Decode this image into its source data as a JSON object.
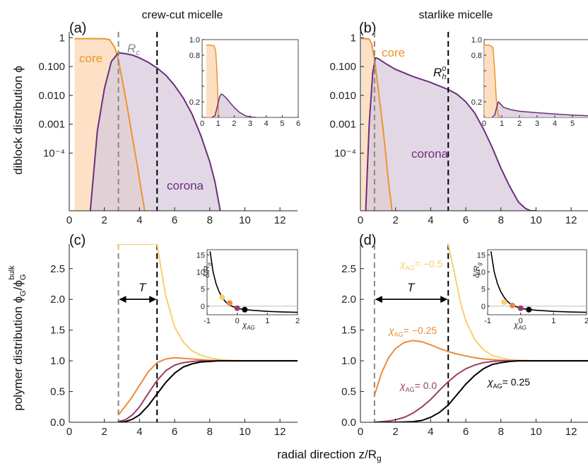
{
  "headers": {
    "a": "crew-cut micelle",
    "b": "starlike micelle"
  },
  "panel_labels": [
    "(a)",
    "(b)",
    "(c)",
    "(d)"
  ],
  "ylabel_top": "diblock distribution ϕ",
  "ylabel_bottom_main": "polymer distribution ϕ",
  "xlabel_main": "radial direction z/R",
  "xlabel_sub": "g",
  "annotations": {
    "core": "core",
    "corona": "corona",
    "Rc": "R",
    "Rc_sub": "c",
    "Rh": "R",
    "Rh_sup": "o",
    "Rh_sub": "h",
    "T": "T",
    "chi_prefix": "χ",
    "chi_sub": "AG",
    "chi_m05": "= −0.5",
    "chi_m025": "= −0.25",
    "chi_0": "= 0.0",
    "chi_025": "= 0.25",
    "inset_ylabel": "δ/R",
    "inset_ylabel_sub": "g",
    "inset_xlabel": "χ",
    "inset_xlabel_sub": "AG"
  },
  "colors": {
    "core": "#f0922b",
    "core_fill": "#fbd7b3",
    "corona": "#6a2f7c",
    "corona_fill": "#d8cbdc",
    "chi_m05": "#f9cf6e",
    "chi_m025": "#ec8a39",
    "chi_0": "#9b3d67",
    "chi_025": "#000000",
    "dashed_grey": "#888888",
    "dashed_black": "#000000"
  },
  "chart_data": [
    {
      "type": "area",
      "panel": "(a)",
      "title": "crew-cut micelle",
      "ylabel": "diblock distribution ϕ",
      "yscale": "log",
      "xlim": [
        0,
        13
      ],
      "ylim": [
        1e-06,
        1.6
      ],
      "xticks": [
        0,
        2,
        4,
        6,
        8,
        10,
        12
      ],
      "yticks": [
        1,
        0.1,
        0.01,
        0.001,
        0.0001
      ],
      "ytick_labels": [
        "1",
        "0.100",
        "0.010",
        "0.001",
        "10⁻⁴"
      ],
      "vlines": [
        {
          "x": 2.8,
          "style": "grey-dashed",
          "label": "Rc"
        },
        {
          "x": 5.0,
          "style": "black-dashed"
        }
      ],
      "series": [
        {
          "name": "core",
          "x": [
            0.3,
            0.5,
            1.0,
            1.5,
            2.0,
            2.3,
            2.6,
            2.8,
            3.0,
            3.3,
            3.6,
            3.9,
            4.1,
            4.3
          ],
          "y": [
            0.93,
            0.93,
            0.93,
            0.93,
            0.92,
            0.85,
            0.45,
            0.17,
            0.04,
            0.004,
            0.00035,
            3e-05,
            5e-06,
            1e-06
          ]
        },
        {
          "name": "corona",
          "x": [
            1.2,
            1.6,
            2.0,
            2.4,
            2.8,
            3.2,
            3.6,
            4.0,
            4.5,
            5.0,
            5.5,
            6.0,
            6.5,
            7.0,
            7.5,
            8.0,
            8.3,
            8.6
          ],
          "y": [
            1e-06,
            0.0006,
            0.017,
            0.15,
            0.3,
            0.28,
            0.25,
            0.2,
            0.14,
            0.09,
            0.05,
            0.022,
            0.008,
            0.0022,
            0.0004,
            5e-05,
            1e-05,
            1e-06
          ]
        }
      ],
      "inset": {
        "xlim": [
          0,
          6
        ],
        "ylim": [
          0,
          1.0
        ],
        "xticks": [
          0,
          1,
          2,
          3,
          4,
          5,
          6
        ],
        "yticks": [
          0.2,
          0.4,
          0.6,
          0.8,
          1.0
        ],
        "series": [
          {
            "name": "core",
            "x": [
              0.25,
              0.5,
              0.75,
              0.85,
              0.92,
              0.97,
              1.0,
              1.05,
              1.1
            ],
            "y": [
              0.93,
              0.93,
              0.92,
              0.85,
              0.6,
              0.35,
              0.12,
              0.02,
              0
            ]
          },
          {
            "name": "corona",
            "x": [
              0.6,
              0.8,
              0.95,
              1.1,
              1.2,
              1.3,
              1.5,
              1.7,
              2.0,
              2.3,
              2.7,
              3.1,
              3.4
            ],
            "y": [
              0,
              0.02,
              0.14,
              0.27,
              0.3,
              0.29,
              0.25,
              0.2,
              0.13,
              0.07,
              0.02,
              0.004,
              0
            ]
          }
        ]
      }
    },
    {
      "type": "area",
      "panel": "(b)",
      "title": "starlike micelle",
      "yscale": "log",
      "xlim": [
        0,
        13
      ],
      "ylim": [
        1e-06,
        1.6
      ],
      "xticks": [
        0,
        2,
        4,
        6,
        8,
        10,
        12
      ],
      "yticks": [
        1,
        0.1,
        0.01,
        0.001,
        0.0001
      ],
      "ytick_labels": [
        "1",
        "0.100",
        "0.010",
        "0.001",
        "10⁻⁴"
      ],
      "vlines": [
        {
          "x": 0.8,
          "style": "grey-dashed"
        },
        {
          "x": 5.0,
          "style": "black-dashed",
          "label": "Rh"
        }
      ],
      "series": [
        {
          "name": "core",
          "x": [
            0.05,
            0.3,
            0.5,
            0.65,
            0.8,
            1.0,
            1.3,
            1.6,
            1.8
          ],
          "y": [
            0.93,
            0.93,
            0.9,
            0.6,
            0.18,
            0.02,
            0.0006,
            1e-05,
            1e-06
          ]
        },
        {
          "name": "corona",
          "x": [
            0.3,
            0.5,
            0.7,
            0.85,
            1.0,
            1.5,
            2.0,
            3.0,
            4.0,
            5.0,
            5.5,
            6.0,
            6.5,
            7.0,
            7.5,
            8.0,
            8.5,
            9.0,
            9.4,
            9.7,
            10.0
          ],
          "y": [
            1e-06,
            0.001,
            0.06,
            0.2,
            0.19,
            0.12,
            0.08,
            0.045,
            0.028,
            0.016,
            0.011,
            0.006,
            0.0025,
            0.0007,
            0.00016,
            3e-05,
            7e-06,
            2e-06,
            1.2e-06,
            1e-06,
            1e-06
          ]
        }
      ],
      "inset": {
        "xlim": [
          0,
          6
        ],
        "ylim": [
          0,
          1.0
        ],
        "xticks": [
          0,
          1,
          2,
          3,
          4,
          5,
          6
        ],
        "yticks": [
          0.2,
          0.4,
          0.6,
          0.8,
          1.0
        ],
        "series": [
          {
            "name": "core",
            "x": [
              0,
              0.3,
              0.5,
              0.6,
              0.7,
              0.8,
              0.9
            ],
            "y": [
              0.93,
              0.93,
              0.9,
              0.6,
              0.2,
              0.03,
              0
            ]
          },
          {
            "name": "corona",
            "x": [
              0.45,
              0.6,
              0.7,
              0.8,
              0.9,
              1.1,
              1.5,
              2.0,
              3.0,
              4.0,
              5.0,
              6.0
            ],
            "y": [
              0,
              0.03,
              0.12,
              0.2,
              0.18,
              0.13,
              0.1,
              0.08,
              0.06,
              0.045,
              0.03,
              0.02
            ]
          }
        ]
      }
    },
    {
      "type": "line",
      "panel": "(c)",
      "ylabel": "polymer distribution ϕG/ϕG bulk",
      "xlabel": "radial direction z/Rg",
      "xlim": [
        0,
        13
      ],
      "ylim": [
        0,
        2.9
      ],
      "xticks": [
        0,
        2,
        4,
        6,
        8,
        10,
        12
      ],
      "yticks": [
        0.0,
        0.5,
        1.0,
        1.5,
        2.0,
        2.5
      ],
      "vlines": [
        {
          "x": 2.8,
          "style": "grey-dashed"
        },
        {
          "x": 5.0,
          "style": "black-dashed"
        }
      ],
      "series": [
        {
          "key": "chi_m05",
          "x": [
            2.8,
            2.82,
            5.0,
            5.2,
            5.5,
            6.0,
            6.5,
            7.0,
            7.5,
            8.0,
            8.5,
            9.0,
            10.0,
            11.0,
            13.0
          ],
          "y": [
            2.8,
            2.9,
            2.9,
            2.55,
            2.05,
            1.55,
            1.3,
            1.16,
            1.09,
            1.05,
            1.02,
            1.01,
            1.0,
            1.0,
            1.0
          ]
        },
        {
          "key": "chi_m025",
          "x": [
            2.8,
            3.0,
            3.5,
            4.0,
            4.5,
            5.0,
            5.5,
            6.0,
            6.5,
            7.0,
            7.5,
            8.0,
            9.0,
            10.0,
            13.0
          ],
          "y": [
            0.12,
            0.19,
            0.38,
            0.6,
            0.82,
            0.97,
            1.03,
            1.05,
            1.04,
            1.03,
            1.02,
            1.01,
            1.0,
            1.0,
            1.0
          ]
        },
        {
          "key": "chi_0",
          "x": [
            2.8,
            3.2,
            3.6,
            4.0,
            4.5,
            5.0,
            5.5,
            6.0,
            6.5,
            7.0,
            7.5,
            8.0,
            9.0,
            10.0,
            13.0
          ],
          "y": [
            0.01,
            0.04,
            0.12,
            0.25,
            0.47,
            0.68,
            0.84,
            0.93,
            0.97,
            0.99,
            1.0,
            1.0,
            1.0,
            1.0,
            1.0
          ]
        },
        {
          "key": "chi_025",
          "x": [
            2.8,
            3.2,
            3.6,
            4.0,
            4.5,
            5.0,
            5.5,
            6.0,
            6.5,
            7.0,
            7.5,
            8.0,
            8.5,
            9.0,
            10.0,
            13.0
          ],
          "y": [
            0.0,
            0.01,
            0.05,
            0.12,
            0.27,
            0.46,
            0.65,
            0.8,
            0.9,
            0.95,
            0.98,
            0.99,
            1.0,
            1.0,
            1.0,
            1.0
          ]
        }
      ],
      "annotation_T": {
        "from": 2.8,
        "to": 5.0,
        "y": 2.0
      },
      "inset": {
        "xlim": [
          -1,
          2
        ],
        "ylim": [
          -2.5,
          16.5
        ],
        "xticks": [
          -1,
          0,
          1,
          2
        ],
        "yticks": [
          0,
          5,
          10,
          15
        ],
        "curve": {
          "x": [
            -0.9,
            -0.8,
            -0.7,
            -0.6,
            -0.5,
            -0.4,
            -0.3,
            -0.2,
            0,
            0.25,
            0.5,
            1.0,
            1.5,
            2.0
          ],
          "y": [
            16,
            10,
            6.5,
            4.2,
            2.6,
            1.4,
            0.6,
            0.1,
            -0.6,
            -1.0,
            -1.2,
            -1.5,
            -1.7,
            -1.8
          ]
        },
        "points": [
          {
            "key": "chi_m05",
            "x": -0.5,
            "y": 2.6
          },
          {
            "key": "chi_m025",
            "x": -0.25,
            "y": 0.9
          },
          {
            "key": "chi_0",
            "x": 0.0,
            "y": -0.6
          },
          {
            "key": "chi_025",
            "x": 0.25,
            "y": -1.0
          }
        ]
      }
    },
    {
      "type": "line",
      "panel": "(d)",
      "xlim": [
        0,
        13
      ],
      "ylim": [
        0,
        2.9
      ],
      "xticks": [
        0,
        2,
        4,
        6,
        8,
        10,
        12
      ],
      "yticks": [
        0.0,
        0.5,
        1.0,
        1.5,
        2.0,
        2.5
      ],
      "vlines": [
        {
          "x": 0.8,
          "style": "grey-dashed"
        },
        {
          "x": 5.0,
          "style": "black-dashed"
        }
      ],
      "series": [
        {
          "key": "chi_m05",
          "x": [
            5.0,
            5.3,
            5.7,
            6.0,
            6.5,
            7.0,
            7.5,
            8.0,
            8.5,
            9.0,
            10.0,
            11.0,
            13.0
          ],
          "y": [
            2.9,
            2.5,
            1.95,
            1.65,
            1.35,
            1.18,
            1.09,
            1.05,
            1.02,
            1.01,
            1.0,
            1.0,
            1.0
          ]
        },
        {
          "key": "chi_m025",
          "x": [
            0.8,
            1.2,
            1.6,
            2.0,
            2.5,
            3.0,
            3.5,
            4.0,
            4.5,
            5.0,
            5.5,
            6.0,
            6.5,
            7.0,
            7.5,
            8.0,
            9.0,
            10.0,
            13.0
          ],
          "y": [
            0.44,
            0.8,
            1.05,
            1.2,
            1.3,
            1.33,
            1.31,
            1.26,
            1.2,
            1.15,
            1.11,
            1.08,
            1.05,
            1.03,
            1.02,
            1.01,
            1.0,
            1.0,
            1.0
          ]
        },
        {
          "key": "chi_0",
          "x": [
            0.8,
            1.2,
            1.6,
            2.0,
            2.5,
            3.0,
            3.5,
            4.0,
            4.5,
            5.0,
            5.5,
            6.0,
            6.5,
            7.0,
            7.5,
            8.0,
            9.0,
            10.0,
            13.0
          ],
          "y": [
            0.0,
            0.01,
            0.02,
            0.04,
            0.08,
            0.15,
            0.25,
            0.37,
            0.52,
            0.66,
            0.78,
            0.87,
            0.93,
            0.97,
            0.99,
            1.0,
            1.0,
            1.0,
            1.0
          ]
        },
        {
          "key": "chi_025",
          "x": [
            0.8,
            2.0,
            3.0,
            3.5,
            4.0,
            4.5,
            5.0,
            5.5,
            6.0,
            6.5,
            7.0,
            7.5,
            8.0,
            8.5,
            9.0,
            10.0,
            13.0
          ],
          "y": [
            0.0,
            0.0,
            0.01,
            0.03,
            0.08,
            0.16,
            0.28,
            0.45,
            0.62,
            0.76,
            0.87,
            0.94,
            0.97,
            0.99,
            1.0,
            1.0,
            1.0
          ]
        }
      ],
      "annotation_T": {
        "from": 0.8,
        "to": 5.0,
        "y": 2.0
      },
      "inset": {
        "xlim": [
          -1,
          2
        ],
        "ylim": [
          -2.5,
          16.5
        ],
        "xticks": [
          -1,
          0,
          1,
          2
        ],
        "yticks": [
          0,
          5,
          10,
          15
        ],
        "curve": {
          "x": [
            -0.9,
            -0.8,
            -0.7,
            -0.6,
            -0.5,
            -0.4,
            -0.3,
            -0.2,
            0,
            0.25,
            0.5,
            1.0,
            1.5,
            2.0
          ],
          "y": [
            16,
            10,
            6.5,
            4.2,
            2.6,
            1.4,
            0.6,
            0.1,
            -0.6,
            -1.0,
            -1.2,
            -1.5,
            -1.7,
            -1.8
          ]
        },
        "points": [
          {
            "key": "chi_m05",
            "x": -0.5,
            "y": 1.2
          },
          {
            "key": "chi_m025",
            "x": -0.25,
            "y": 0.2
          },
          {
            "key": "chi_0",
            "x": 0.0,
            "y": -0.6
          },
          {
            "key": "chi_025",
            "x": 0.25,
            "y": -1.0
          }
        ]
      }
    }
  ]
}
